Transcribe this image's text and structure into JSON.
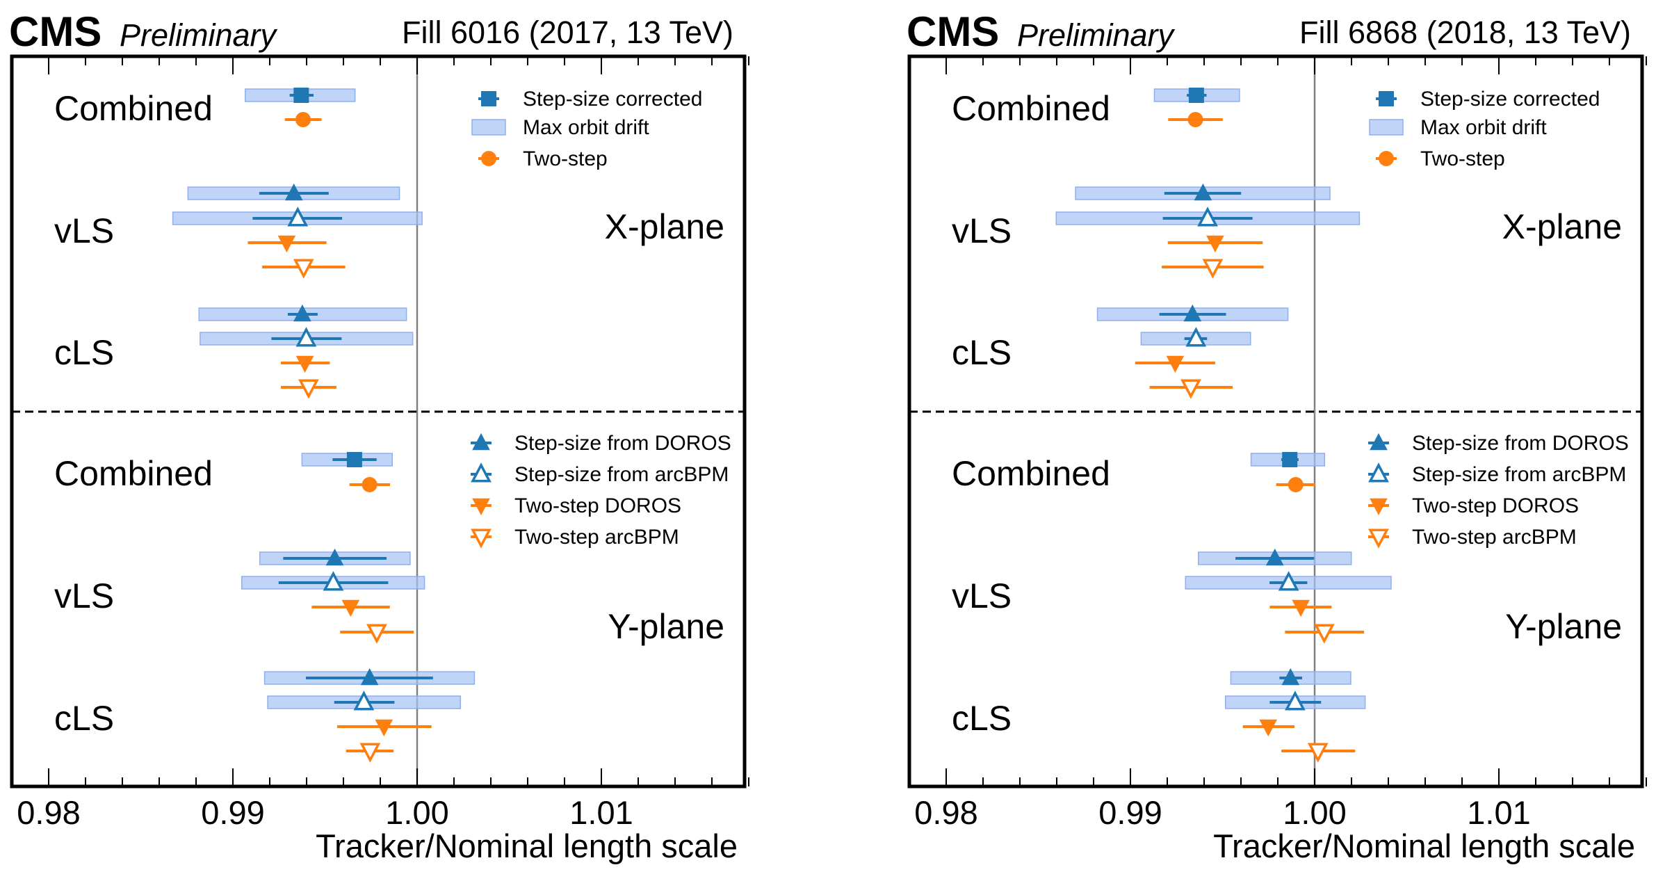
{
  "colors": {
    "step_size": "#1f77b4",
    "two_step": "#ff7f0e",
    "orbit_band": "#a4c2f4",
    "reference_line": "#808080"
  },
  "chart_data": [
    {
      "type": "errorbar-forest",
      "header": {
        "experiment": "CMS",
        "status": "Preliminary",
        "run_info": "Fill 6016 (2017, 13 TeV)"
      },
      "xlabel": "Tracker/Nominal length scale",
      "xlim": [
        0.978,
        1.018
      ],
      "xticks": [
        "0.98",
        "0.99",
        "1.00",
        "1.01"
      ],
      "xtick_values": [
        0.98,
        0.99,
        1.0,
        1.01
      ],
      "minor_tick_step": 0.002,
      "reference_line": 1.0,
      "grid": false,
      "planes": [
        {
          "label": "X-plane",
          "legend_placement": "top-right",
          "legend": [
            {
              "marker": "square",
              "series": "step",
              "label": "Step-size corrected"
            },
            {
              "marker": "band",
              "series": "band",
              "label": "Max orbit drift"
            },
            {
              "marker": "circle",
              "series": "two",
              "label": "Two-step"
            }
          ],
          "groups": [
            {
              "label": "Combined",
              "points": [
                {
                  "marker": "square",
                  "series": "step",
                  "value": 0.99371,
                  "err": [
                    0.99308,
                    0.99438
                  ],
                  "band": [
                    0.99067,
                    0.99663
                  ]
                },
                {
                  "marker": "circle",
                  "series": "two",
                  "value": 0.99381,
                  "err": [
                    0.99282,
                    0.99481
                  ]
                }
              ]
            },
            {
              "label": "vLS",
              "points": [
                {
                  "marker": "triangle-up",
                  "series": "step",
                  "value": 0.99331,
                  "err": [
                    0.99143,
                    0.9952
                  ],
                  "band": [
                    0.98756,
                    0.99904
                  ]
                },
                {
                  "marker": "triangle-up-open",
                  "series": "step",
                  "value": 0.99352,
                  "err": [
                    0.99107,
                    0.99593
                  ],
                  "band": [
                    0.98674,
                    1.00027
                  ]
                },
                {
                  "marker": "triangle-down",
                  "series": "two",
                  "value": 0.99292,
                  "err": [
                    0.99081,
                    0.99508
                  ]
                },
                {
                  "marker": "triangle-down-open",
                  "series": "two",
                  "value": 0.99384,
                  "err": [
                    0.99159,
                    0.9961
                  ]
                }
              ]
            },
            {
              "label": "cLS",
              "points": [
                {
                  "marker": "triangle-up",
                  "series": "step",
                  "value": 0.99377,
                  "err": [
                    0.99298,
                    0.9946
                  ],
                  "band": [
                    0.98816,
                    0.99942
                  ]
                },
                {
                  "marker": "triangle-up-open",
                  "series": "step",
                  "value": 0.99398,
                  "err": [
                    0.99209,
                    0.9959
                  ],
                  "band": [
                    0.98822,
                    0.99976
                  ]
                },
                {
                  "marker": "triangle-down",
                  "series": "two",
                  "value": 0.99391,
                  "err": [
                    0.9926,
                    0.99526
                  ]
                },
                {
                  "marker": "triangle-down-open",
                  "series": "two",
                  "value": 0.99411,
                  "err": [
                    0.9926,
                    0.99562
                  ]
                }
              ]
            }
          ]
        },
        {
          "label": "Y-plane",
          "legend_placement": "top-right",
          "legend": [
            {
              "marker": "triangle-up",
              "series": "step",
              "label": "Step-size from DOROS"
            },
            {
              "marker": "triangle-up-open",
              "series": "step",
              "label": "Step-size from arcBPM"
            },
            {
              "marker": "triangle-down",
              "series": "two",
              "label": "Two-step DOROS"
            },
            {
              "marker": "triangle-down-open",
              "series": "two",
              "label": "Two-step arcBPM"
            }
          ],
          "groups": [
            {
              "label": "Combined",
              "points": [
                {
                  "marker": "square",
                  "series": "step",
                  "value": 0.9966,
                  "err": [
                    0.99541,
                    0.9978
                  ],
                  "band": [
                    0.99375,
                    0.99865
                  ]
                },
                {
                  "marker": "circle",
                  "series": "two",
                  "value": 0.99742,
                  "err": [
                    0.99633,
                    0.99853
                  ]
                }
              ]
            },
            {
              "label": "vLS",
              "points": [
                {
                  "marker": "triangle-up",
                  "series": "step",
                  "value": 0.99553,
                  "err": [
                    0.99273,
                    0.99834
                  ],
                  "band": [
                    0.99146,
                    0.99962
                  ]
                },
                {
                  "marker": "triangle-up-open",
                  "series": "step",
                  "value": 0.99545,
                  "err": [
                    0.99248,
                    0.99843
                  ],
                  "band": [
                    0.99048,
                    1.0004
                  ]
                },
                {
                  "marker": "triangle-down",
                  "series": "two",
                  "value": 0.99639,
                  "err": [
                    0.99428,
                    0.99852
                  ]
                },
                {
                  "marker": "triangle-down-open",
                  "series": "two",
                  "value": 0.99781,
                  "err": [
                    0.99582,
                    0.99982
                  ]
                }
              ]
            },
            {
              "label": "cLS",
              "points": [
                {
                  "marker": "triangle-up",
                  "series": "step",
                  "value": 0.99742,
                  "err": [
                    0.99396,
                    1.00086
                  ],
                  "band": [
                    0.99172,
                    1.00311
                  ]
                },
                {
                  "marker": "triangle-up-open",
                  "series": "step",
                  "value": 0.99711,
                  "err": [
                    0.9955,
                    0.99877
                  ],
                  "band": [
                    0.99189,
                    1.00235
                  ]
                },
                {
                  "marker": "triangle-down",
                  "series": "two",
                  "value": 0.9982,
                  "err": [
                    0.99566,
                    1.00078
                  ]
                },
                {
                  "marker": "triangle-down-open",
                  "series": "two",
                  "value": 0.99745,
                  "err": [
                    0.99614,
                    0.99872
                  ]
                }
              ]
            }
          ]
        }
      ]
    },
    {
      "type": "errorbar-forest",
      "header": {
        "experiment": "CMS",
        "status": "Preliminary",
        "run_info": "Fill 6868 (2018, 13 TeV)"
      },
      "xlabel": "Tracker/Nominal length scale",
      "xlim": [
        0.978,
        1.018
      ],
      "xticks": [
        "0.98",
        "0.99",
        "1.00",
        "1.01"
      ],
      "xtick_values": [
        0.98,
        0.99,
        1.0,
        1.01
      ],
      "minor_tick_step": 0.002,
      "reference_line": 1.0,
      "grid": false,
      "planes": [
        {
          "label": "X-plane",
          "legend_placement": "top-right",
          "legend": [
            {
              "marker": "square",
              "series": "step",
              "label": "Step-size corrected"
            },
            {
              "marker": "band",
              "series": "band",
              "label": "Max orbit drift"
            },
            {
              "marker": "circle",
              "series": "two",
              "label": "Two-step"
            }
          ],
          "groups": [
            {
              "label": "Combined",
              "points": [
                {
                  "marker": "square",
                  "series": "step",
                  "value": 0.99358,
                  "err": [
                    0.99306,
                    0.99413
                  ],
                  "band": [
                    0.9913,
                    0.99592
                  ]
                },
                {
                  "marker": "circle",
                  "series": "two",
                  "value": 0.99353,
                  "err": [
                    0.99205,
                    0.99501
                  ]
                }
              ]
            },
            {
              "label": "vLS",
              "points": [
                {
                  "marker": "triangle-up",
                  "series": "step",
                  "value": 0.99394,
                  "err": [
                    0.99184,
                    0.99601
                  ],
                  "band": [
                    0.98702,
                    1.00083
                  ]
                },
                {
                  "marker": "triangle-up-open",
                  "series": "step",
                  "value": 0.99419,
                  "err": [
                    0.99176,
                    0.99663
                  ],
                  "band": [
                    0.98597,
                    1.00243
                  ]
                },
                {
                  "marker": "triangle-down",
                  "series": "two",
                  "value": 0.9946,
                  "err": [
                    0.99203,
                    0.99718
                  ]
                },
                {
                  "marker": "triangle-down-open",
                  "series": "two",
                  "value": 0.99447,
                  "err": [
                    0.9917,
                    0.99723
                  ]
                }
              ]
            },
            {
              "label": "cLS",
              "points": [
                {
                  "marker": "triangle-up",
                  "series": "step",
                  "value": 0.99337,
                  "err": [
                    0.99157,
                    0.99519
                  ],
                  "band": [
                    0.98821,
                    0.99855
                  ]
                },
                {
                  "marker": "triangle-up-open",
                  "series": "step",
                  "value": 0.99356,
                  "err": [
                    0.99293,
                    0.99416
                  ],
                  "band": [
                    0.99058,
                    0.99652
                  ]
                },
                {
                  "marker": "triangle-down",
                  "series": "two",
                  "value": 0.99243,
                  "err": [
                    0.99026,
                    0.9946
                  ]
                },
                {
                  "marker": "triangle-down-open",
                  "series": "two",
                  "value": 0.99328,
                  "err": [
                    0.99104,
                    0.99555
                  ]
                }
              ]
            }
          ]
        },
        {
          "label": "Y-plane",
          "legend_placement": "top-right",
          "legend": [
            {
              "marker": "triangle-up",
              "series": "step",
              "label": "Step-size from DOROS"
            },
            {
              "marker": "triangle-up-open",
              "series": "step",
              "label": "Step-size from arcBPM"
            },
            {
              "marker": "triangle-down",
              "series": "two",
              "label": "Two-step DOROS"
            },
            {
              "marker": "triangle-down-open",
              "series": "two",
              "label": "Two-step arcBPM"
            }
          ],
          "groups": [
            {
              "label": "Combined",
              "points": [
                {
                  "marker": "square",
                  "series": "step",
                  "value": 0.99865,
                  "err": [
                    0.99819,
                    0.99913
                  ],
                  "band": [
                    0.99655,
                    1.00054
                  ]
                },
                {
                  "marker": "circle",
                  "series": "two",
                  "value": 0.99897,
                  "err": [
                    0.99791,
                    1.00004
                  ]
                }
              ]
            },
            {
              "label": "vLS",
              "points": [
                {
                  "marker": "triangle-up",
                  "series": "step",
                  "value": 0.99784,
                  "err": [
                    0.9957,
                    0.99997
                  ],
                  "band": [
                    0.99369,
                    1.00199
                  ]
                },
                {
                  "marker": "triangle-up-open",
                  "series": "step",
                  "value": 0.99859,
                  "err": [
                    0.99755,
                    0.9996
                  ],
                  "band": [
                    0.99299,
                    1.00415
                  ]
                },
                {
                  "marker": "triangle-down",
                  "series": "two",
                  "value": 0.99925,
                  "err": [
                    0.99756,
                    1.00092
                  ]
                },
                {
                  "marker": "triangle-down-open",
                  "series": "two",
                  "value": 1.00052,
                  "err": [
                    0.99839,
                    1.00268
                  ]
                }
              ]
            },
            {
              "label": "cLS",
              "points": [
                {
                  "marker": "triangle-up",
                  "series": "step",
                  "value": 0.99869,
                  "err": [
                    0.99809,
                    0.99932
                  ],
                  "band": [
                    0.99545,
                    1.00196
                  ]
                },
                {
                  "marker": "triangle-up-open",
                  "series": "step",
                  "value": 0.99894,
                  "err": [
                    0.99756,
                    1.00035
                  ],
                  "band": [
                    0.99516,
                    1.00274
                  ]
                },
                {
                  "marker": "triangle-down",
                  "series": "two",
                  "value": 0.99748,
                  "err": [
                    0.9961,
                    0.99891
                  ]
                },
                {
                  "marker": "triangle-down-open",
                  "series": "two",
                  "value": 1.00018,
                  "err": [
                    0.99819,
                    1.0022
                  ]
                }
              ]
            }
          ]
        }
      ]
    }
  ]
}
